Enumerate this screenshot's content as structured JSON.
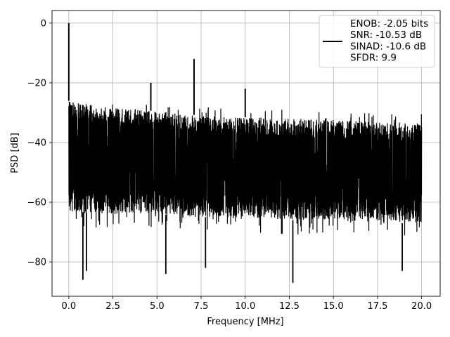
{
  "chart_data": {
    "type": "line",
    "xlabel": "Frequency [MHz]",
    "ylabel": "PSD [dB]",
    "xlim": [
      -0.95,
      21.05
    ],
    "ylim": [
      -91.5,
      4.2
    ],
    "x_ticks": [
      0.0,
      2.5,
      5.0,
      7.5,
      10.0,
      12.5,
      15.0,
      17.5,
      20.0
    ],
    "x_tick_labels": [
      "0.0",
      "2.5",
      "5.0",
      "7.5",
      "10.0",
      "12.5",
      "15.0",
      "17.5",
      "20.0"
    ],
    "y_ticks": [
      0,
      -20,
      -40,
      -60,
      -80
    ],
    "y_tick_labels": [
      "0",
      "−20",
      "−40",
      "−60",
      "−80"
    ],
    "grid": true,
    "legend_position": "top-right",
    "legend_entries": [
      "ENOB: -2.05 bits",
      "SNR: -10.53 dB",
      "SINAD: -10.6 dB",
      "SFDR: 9.9"
    ],
    "series": [
      {
        "color": "#000000",
        "x_range": [
          0.0,
          20.0
        ],
        "noise_floor_top": [
          [
            0.0,
            -26
          ],
          [
            2.5,
            -28.5
          ],
          [
            5.0,
            -29.5
          ],
          [
            7.5,
            -31
          ],
          [
            10.0,
            -31.5
          ],
          [
            12.5,
            -32
          ],
          [
            15.0,
            -32.5
          ],
          [
            17.5,
            -33
          ],
          [
            20.0,
            -33.5
          ]
        ],
        "noise_floor_bottom": [
          [
            0.0,
            -63
          ],
          [
            2.5,
            -64
          ],
          [
            5.0,
            -64
          ],
          [
            7.5,
            -65
          ],
          [
            10.0,
            -65
          ],
          [
            12.5,
            -66
          ],
          [
            15.0,
            -66
          ],
          [
            17.5,
            -67
          ],
          [
            20.0,
            -67
          ]
        ],
        "peaks": [
          {
            "x": 0.0,
            "y": 0.0
          },
          {
            "x": 4.65,
            "y": -20.0
          },
          {
            "x": 7.1,
            "y": -12.0
          },
          {
            "x": 10.0,
            "y": -22.0
          }
        ],
        "dips": [
          {
            "x": 0.8,
            "y": -86.0
          },
          {
            "x": 1.0,
            "y": -83.0
          },
          {
            "x": 5.5,
            "y": -84.0
          },
          {
            "x": 7.75,
            "y": -82.0
          },
          {
            "x": 12.7,
            "y": -87.0
          },
          {
            "x": 18.9,
            "y": -83.0
          }
        ]
      }
    ]
  }
}
